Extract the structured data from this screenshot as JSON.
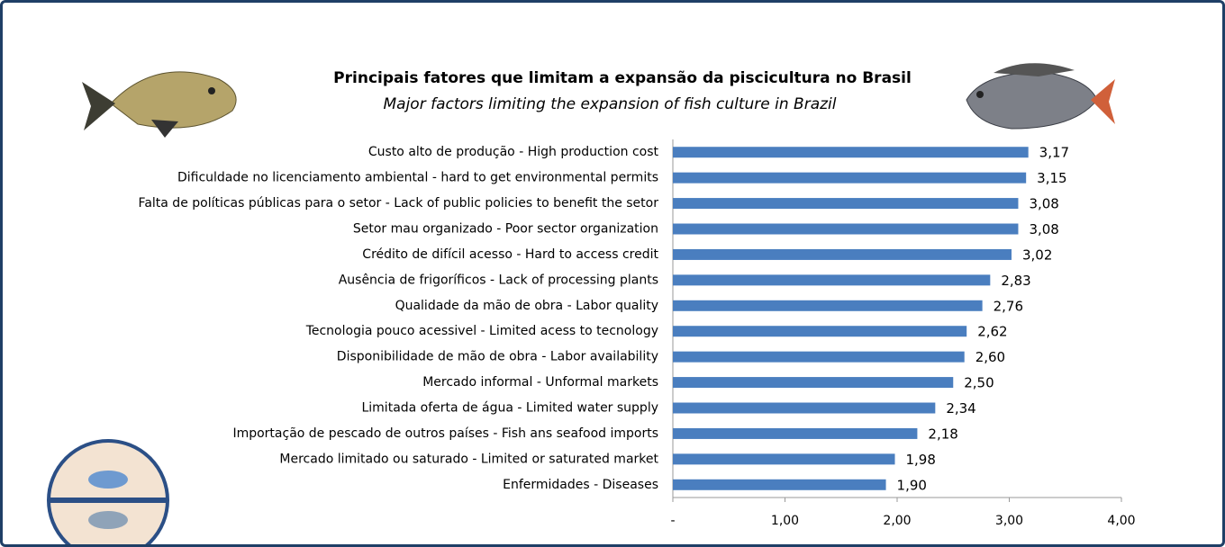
{
  "chart_data": {
    "type": "bar",
    "orientation": "horizontal",
    "title": "Principais fatores que limitam a expansão da piscicultura no Brasil",
    "subtitle": "Major factors limiting the expansion of fish culture in Brazil",
    "categories": [
      "Custo alto de produção - High production cost",
      "Dificuldade no licenciamento ambiental - hard to get environmental permits",
      "Falta de políticas públicas para o setor - Lack of public policies to benefit the setor",
      "Setor mau organizado - Poor sector organization",
      "Crédito de difícil acesso - Hard to access credit",
      "Ausência de frigoríficos - Lack of processing plants",
      "Qualidade da mão de obra - Labor quality",
      "Tecnologia pouco acessivel - Limited acess to tecnology",
      "Disponibilidade de mão de obra - Labor availability",
      "Mercado informal - Unformal markets",
      "Limitada oferta de água - Limited water supply",
      "Importação de pescado de outros países - Fish ans seafood imports",
      "Mercado limitado ou saturado - Limited or saturated market",
      "Enfermidades - Diseases"
    ],
    "values": [
      3.17,
      3.15,
      3.08,
      3.08,
      3.02,
      2.83,
      2.76,
      2.62,
      2.6,
      2.5,
      2.34,
      2.18,
      1.98,
      1.9
    ],
    "value_labels": [
      "3,17",
      "3,15",
      "3,08",
      "3,08",
      "3,02",
      "2,83",
      "2,76",
      "2,62",
      "2,60",
      "2,50",
      "2,34",
      "2,18",
      "1,98",
      "1,90"
    ],
    "color": "#4a7ebf",
    "xlim": [
      0,
      4
    ],
    "xticks": [
      {
        "value": 0,
        "label": "-"
      },
      {
        "value": 1,
        "label": "1,00"
      },
      {
        "value": 2,
        "label": "2,00"
      },
      {
        "value": 3,
        "label": "3,00"
      },
      {
        "value": 4,
        "label": "4,00"
      }
    ],
    "grid": false
  }
}
